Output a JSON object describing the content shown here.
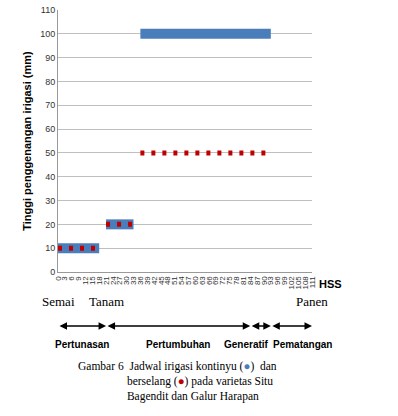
{
  "chart_data": {
    "type": "line",
    "y_label": "Tinggi penggenangan irigasi (mm)",
    "x_label": "HSS",
    "x": [
      0,
      18,
      19,
      21,
      33,
      34,
      36,
      93
    ],
    "series": [
      {
        "name": "kontinyu",
        "color": "#4a7ebb",
        "line_style": "solid",
        "values": [
          10,
          10,
          null,
          20,
          20,
          null,
          100,
          100
        ]
      },
      {
        "name": "berselang",
        "color": "#c00000",
        "line_style": "dot",
        "values": [
          10,
          10,
          null,
          20,
          20,
          null,
          50,
          50
        ]
      }
    ],
    "xlim": [
      0,
      111
    ],
    "xticks": [
      0,
      3,
      6,
      9,
      12,
      15,
      18,
      21,
      24,
      27,
      30,
      33,
      36,
      39,
      42,
      45,
      48,
      51,
      54,
      57,
      60,
      63,
      66,
      69,
      72,
      75,
      78,
      81,
      84,
      87,
      90,
      93,
      96,
      99,
      102,
      105,
      108,
      111
    ],
    "ylim": [
      0,
      110
    ],
    "yticks": [
      0,
      10,
      20,
      30,
      40,
      50,
      60,
      70,
      80,
      90,
      100,
      110
    ],
    "grid": true,
    "phases": [
      {
        "label": "Semai",
        "x": 0
      },
      {
        "label": "Tanam",
        "x": 21
      },
      {
        "label": "Panen",
        "x": 111
      }
    ],
    "stages": [
      {
        "label": "Pertunasan",
        "from": 0,
        "to": 21
      },
      {
        "label": "Pertumbuhan",
        "from": 21,
        "to": 84
      },
      {
        "label": "Generatif",
        "from": 84,
        "to": 93
      },
      {
        "label": "Pematangan",
        "from": 93,
        "to": 111
      }
    ],
    "caption": [
      "Gambar 6  Jadwal irigasi kontinyu (●)  dan",
      "berselang (●) pada varietas Situ",
      "Bagendit dan Galur Harapan"
    ]
  }
}
